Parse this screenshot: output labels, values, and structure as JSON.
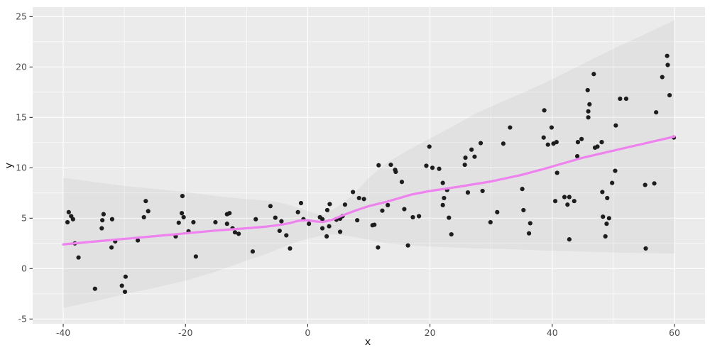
{
  "figure": {
    "background": "#ffffff"
  },
  "chart_data": {
    "type": "scatter",
    "title": "",
    "xlabel": "x",
    "ylabel": "y",
    "legend": "none",
    "grid": true,
    "panel_bg": "#EBEBEB",
    "grid_color": "#FFFFFF",
    "axis_text_color": "#4D4D4D",
    "tick_mark_color": "#333333",
    "point_color": "#1D1D1D",
    "point_radius": 3.1,
    "xlim": [
      -45,
      65
    ],
    "ylim": [
      -5.47,
      25.94
    ],
    "x_ticks": [
      -40,
      -20,
      0,
      20,
      40,
      60
    ],
    "y_ticks": [
      -5,
      0,
      5,
      10,
      15,
      20,
      25
    ],
    "x_minor_ticks": [
      -30,
      -10,
      10,
      30,
      50
    ],
    "y_minor_ticks": [
      -2.5,
      2.5,
      7.5,
      12.5,
      17.5,
      22.5
    ],
    "smooth_line": {
      "color": "#EE82EE",
      "width": 3.2,
      "points": [
        [
          -40,
          2.4
        ],
        [
          -35,
          2.68
        ],
        [
          -30,
          2.95
        ],
        [
          -25,
          3.22
        ],
        [
          -20,
          3.5
        ],
        [
          -15,
          3.78
        ],
        [
          -10,
          4.0
        ],
        [
          -7,
          4.15
        ],
        [
          -5,
          4.3
        ],
        [
          -3,
          4.5
        ],
        [
          -1.5,
          4.75
        ],
        [
          0,
          4.8
        ],
        [
          1,
          4.7
        ],
        [
          2.5,
          4.62
        ],
        [
          4,
          4.85
        ],
        [
          6,
          5.35
        ],
        [
          8,
          5.8
        ],
        [
          10,
          6.2
        ],
        [
          13,
          6.65
        ],
        [
          17,
          7.35
        ],
        [
          20,
          7.7
        ],
        [
          25,
          8.15
        ],
        [
          30,
          8.65
        ],
        [
          35,
          9.3
        ],
        [
          38.7,
          9.9
        ],
        [
          45,
          11.0
        ],
        [
          50,
          11.7
        ],
        [
          55,
          12.4
        ],
        [
          60,
          13.1
        ]
      ]
    },
    "confidence_ribbon": {
      "fill": "#3F3F3F",
      "opacity": 0.055,
      "upper": [
        [
          -40,
          9.0
        ],
        [
          -35,
          8.6
        ],
        [
          -30,
          8.2
        ],
        [
          -25,
          7.9
        ],
        [
          -20,
          7.6
        ],
        [
          -15,
          7.2
        ],
        [
          -10,
          6.9
        ],
        [
          -7,
          6.75
        ],
        [
          -5,
          6.6
        ],
        [
          -3,
          6.3
        ],
        [
          -1,
          5.9
        ],
        [
          1,
          5.5
        ],
        [
          2.5,
          5.35
        ],
        [
          4,
          5.8
        ],
        [
          6,
          6.6
        ],
        [
          8,
          7.7
        ],
        [
          10,
          9.0
        ],
        [
          13,
          10.5
        ],
        [
          16,
          11.6
        ],
        [
          20,
          12.9
        ],
        [
          24,
          14.2
        ],
        [
          27.5,
          15.4
        ],
        [
          32,
          16.6
        ],
        [
          38.7,
          18.4
        ],
        [
          45,
          20.3
        ],
        [
          50,
          21.8
        ],
        [
          55,
          23.2
        ],
        [
          60,
          24.65
        ]
      ],
      "lower": [
        [
          -40,
          -3.9
        ],
        [
          -35,
          -3.25
        ],
        [
          -30,
          -2.55
        ],
        [
          -25,
          -1.9
        ],
        [
          -20,
          -1.2
        ],
        [
          -15,
          -0.3
        ],
        [
          -10,
          0.8
        ],
        [
          -7,
          1.4
        ],
        [
          -5,
          1.9
        ],
        [
          -3,
          2.4
        ],
        [
          -1,
          2.8
        ],
        [
          1,
          3.1
        ],
        [
          2.5,
          3.3
        ],
        [
          4,
          3.4
        ],
        [
          6,
          3.3
        ],
        [
          8,
          3.1
        ],
        [
          10,
          2.85
        ],
        [
          13,
          2.5
        ],
        [
          16,
          2.35
        ],
        [
          20,
          2.2
        ],
        [
          24,
          2.1
        ],
        [
          27.5,
          2.0
        ],
        [
          32,
          1.95
        ],
        [
          38.7,
          1.8
        ],
        [
          45,
          1.7
        ],
        [
          50,
          1.6
        ],
        [
          55,
          1.55
        ],
        [
          60,
          1.5
        ]
      ]
    },
    "points": [
      [
        -39.1,
        5.6
      ],
      [
        -38.7,
        5.2
      ],
      [
        -38.4,
        4.9
      ],
      [
        -39.3,
        4.6
      ],
      [
        -38.1,
        2.5
      ],
      [
        -37.5,
        1.1
      ],
      [
        -34.8,
        -2.0
      ],
      [
        -33.4,
        5.4
      ],
      [
        -33.6,
        4.8
      ],
      [
        -33.7,
        4.0
      ],
      [
        -32.0,
        4.9
      ],
      [
        -31.5,
        2.7
      ],
      [
        -32.1,
        2.1
      ],
      [
        -30.4,
        -1.7
      ],
      [
        -29.9,
        -2.3
      ],
      [
        -29.8,
        -0.8
      ],
      [
        -27.8,
        2.8
      ],
      [
        -26.5,
        6.7
      ],
      [
        -26.1,
        5.7
      ],
      [
        -26.8,
        5.1
      ],
      [
        -21.6,
        3.2
      ],
      [
        -21.1,
        4.55
      ],
      [
        -20.5,
        7.2
      ],
      [
        -20.3,
        5.1
      ],
      [
        -20.6,
        5.5
      ],
      [
        -19.5,
        3.7
      ],
      [
        -18.7,
        4.6
      ],
      [
        -18.3,
        1.2
      ],
      [
        -15.1,
        4.6
      ],
      [
        -13.2,
        5.4
      ],
      [
        -12.8,
        5.5
      ],
      [
        -13.2,
        4.45
      ],
      [
        -12.3,
        4.0
      ],
      [
        -11.9,
        3.6
      ],
      [
        -11.3,
        3.45
      ],
      [
        -9.0,
        1.7
      ],
      [
        -8.5,
        4.9
      ],
      [
        -6.1,
        6.2
      ],
      [
        -5.3,
        5.05
      ],
      [
        -4.3,
        4.7
      ],
      [
        -4.6,
        3.75
      ],
      [
        -3.5,
        3.3
      ],
      [
        -2.9,
        2.0
      ],
      [
        -1.6,
        5.6
      ],
      [
        -1.1,
        6.5
      ],
      [
        -0.7,
        4.9
      ],
      [
        0.2,
        4.45
      ],
      [
        2.0,
        5.1
      ],
      [
        2.4,
        4.9
      ],
      [
        2.4,
        4.0
      ],
      [
        3.2,
        5.8
      ],
      [
        3.6,
        6.4
      ],
      [
        3.1,
        3.2
      ],
      [
        3.5,
        4.2
      ],
      [
        4.7,
        4.85
      ],
      [
        5.3,
        4.95
      ],
      [
        5.3,
        3.65
      ],
      [
        5.7,
        5.2
      ],
      [
        6.1,
        6.35
      ],
      [
        7.4,
        7.6
      ],
      [
        8.1,
        4.8
      ],
      [
        8.4,
        7.0
      ],
      [
        9.2,
        6.9
      ],
      [
        10.6,
        4.3
      ],
      [
        11.6,
        10.25
      ],
      [
        13.6,
        10.3
      ],
      [
        14.3,
        9.8
      ],
      [
        14.4,
        9.6
      ],
      [
        13.1,
        6.3
      ],
      [
        12.2,
        5.75
      ],
      [
        10.9,
        4.35
      ],
      [
        11.5,
        2.1
      ],
      [
        15.4,
        8.6
      ],
      [
        15.8,
        5.9
      ],
      [
        16.4,
        2.3
      ],
      [
        17.2,
        5.1
      ],
      [
        18.2,
        5.2
      ],
      [
        19.9,
        12.1
      ],
      [
        19.4,
        10.2
      ],
      [
        20.4,
        10.0
      ],
      [
        21.5,
        9.9
      ],
      [
        22.1,
        8.5
      ],
      [
        22.8,
        7.8
      ],
      [
        22.3,
        7.0
      ],
      [
        22.1,
        6.3
      ],
      [
        23.1,
        5.05
      ],
      [
        23.5,
        3.4
      ],
      [
        25.8,
        11.0
      ],
      [
        25.7,
        10.3
      ],
      [
        26.8,
        11.8
      ],
      [
        27.3,
        11.1
      ],
      [
        26.2,
        7.55
      ],
      [
        28.6,
        7.7
      ],
      [
        28.3,
        12.45
      ],
      [
        29.9,
        4.6
      ],
      [
        31.0,
        5.6
      ],
      [
        32.0,
        12.4
      ],
      [
        33.1,
        14.0
      ],
      [
        35.1,
        7.9
      ],
      [
        35.3,
        5.8
      ],
      [
        36.4,
        4.5
      ],
      [
        36.2,
        3.5
      ],
      [
        38.7,
        15.7
      ],
      [
        38.6,
        13.0
      ],
      [
        39.9,
        14.0
      ],
      [
        39.3,
        12.3
      ],
      [
        40.2,
        12.4
      ],
      [
        40.7,
        12.55
      ],
      [
        40.8,
        9.5
      ],
      [
        40.5,
        6.7
      ],
      [
        42.0,
        7.1
      ],
      [
        42.8,
        7.1
      ],
      [
        42.5,
        6.35
      ],
      [
        43.6,
        6.7
      ],
      [
        42.8,
        2.9
      ],
      [
        44.2,
        12.55
      ],
      [
        44.8,
        12.85
      ],
      [
        44.1,
        11.15
      ],
      [
        45.9,
        15.0
      ],
      [
        45.8,
        17.7
      ],
      [
        46.1,
        16.3
      ],
      [
        45.9,
        15.6
      ],
      [
        46.8,
        19.3
      ],
      [
        47.0,
        12.0
      ],
      [
        47.4,
        12.1
      ],
      [
        48.1,
        12.55
      ],
      [
        48.2,
        7.6
      ],
      [
        48.3,
        5.15
      ],
      [
        48.9,
        4.45
      ],
      [
        48.7,
        3.2
      ],
      [
        49.0,
        7.0
      ],
      [
        49.3,
        5.0
      ],
      [
        49.8,
        8.5
      ],
      [
        50.3,
        9.7
      ],
      [
        50.4,
        14.2
      ],
      [
        51.1,
        16.85
      ],
      [
        52.1,
        16.85
      ],
      [
        55.2,
        8.3
      ],
      [
        55.3,
        2.0
      ],
      [
        56.7,
        8.45
      ],
      [
        57.0,
        15.5
      ],
      [
        58.0,
        19.0
      ],
      [
        58.8,
        21.1
      ],
      [
        58.9,
        20.2
      ],
      [
        59.2,
        17.2
      ],
      [
        59.9,
        13.0
      ]
    ]
  }
}
